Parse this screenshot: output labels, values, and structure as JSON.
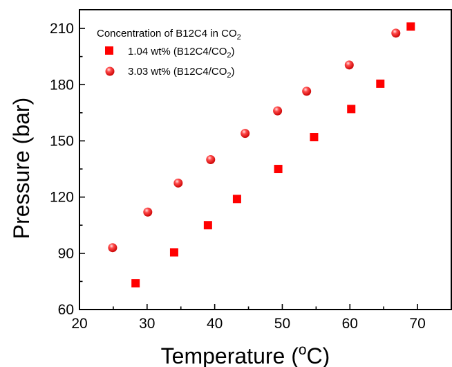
{
  "chart_data": {
    "type": "scatter",
    "xlabel": {
      "main": "Temperature (",
      "sup": "o",
      "end": "C)"
    },
    "ylabel": "Pressure (bar)",
    "xlim": [
      20,
      75
    ],
    "ylim": [
      60,
      220
    ],
    "x_ticks": [
      20,
      30,
      40,
      50,
      60,
      70
    ],
    "y_ticks": [
      60,
      90,
      120,
      150,
      180,
      210
    ],
    "grid": false,
    "legend_position": "top-left",
    "legend_title": {
      "main": "Concentration of B12C4 in CO",
      "sub": "2"
    },
    "series": [
      {
        "name": "1.04 wt% (B12C4/CO2)",
        "name_main": "1.04 wt% (B12C4/CO",
        "name_sub": "2",
        "name_end": ")",
        "marker": "square",
        "color": "#ff0000",
        "points": [
          [
            28.3,
            74
          ],
          [
            34.0,
            90.5
          ],
          [
            39.0,
            105
          ],
          [
            43.3,
            119
          ],
          [
            49.4,
            135
          ],
          [
            54.7,
            152
          ],
          [
            60.2,
            167
          ],
          [
            64.5,
            180.5
          ],
          [
            69.0,
            211
          ]
        ]
      },
      {
        "name": "3.03 wt% (B12C4/CO2)",
        "name_main": "3.03 wt% (B12C4/CO",
        "name_sub": "2",
        "name_end": ")",
        "marker": "sphere",
        "color": "#ff0000",
        "points": [
          [
            24.9,
            93
          ],
          [
            30.1,
            112
          ],
          [
            34.6,
            127.5
          ],
          [
            39.4,
            140
          ],
          [
            44.5,
            154
          ],
          [
            49.3,
            166
          ],
          [
            53.6,
            176.5
          ],
          [
            59.9,
            190.5
          ],
          [
            66.8,
            207.5
          ]
        ]
      }
    ]
  }
}
